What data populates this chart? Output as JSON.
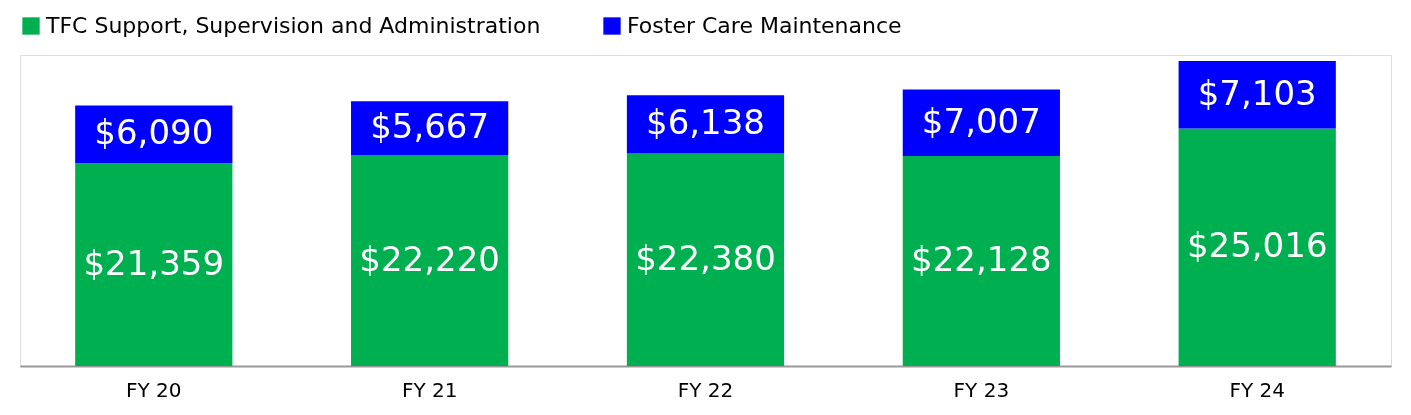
{
  "chart_data": {
    "type": "bar",
    "stacked": true,
    "legend": "top",
    "categories": [
      "FY 20",
      "FY 21",
      "FY 22",
      "FY 23",
      "FY 24"
    ],
    "series": [
      {
        "name": "TFC Support, Supervision and Administration",
        "color": "#00b050",
        "values": [
          21359,
          22220,
          22380,
          22128,
          25016
        ],
        "value_labels": [
          "$21,359",
          "$22,220",
          "$22,380",
          "$22,128",
          "$25,016"
        ]
      },
      {
        "name": "Foster Care Maintenance",
        "color": "#0000ff",
        "values": [
          6090,
          5667,
          6138,
          7007,
          7103
        ],
        "value_labels": [
          "$6,090",
          "$5,667",
          "$6,138",
          "$7,007",
          "$7,103"
        ]
      }
    ]
  }
}
